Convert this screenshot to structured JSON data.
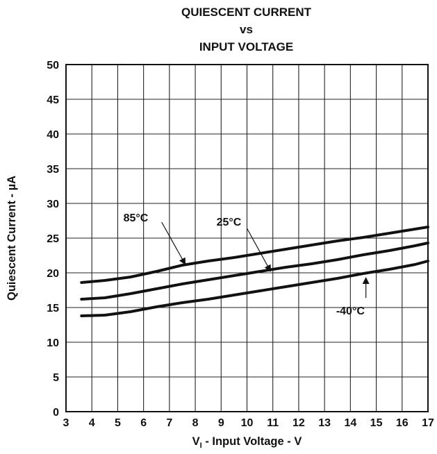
{
  "chart_data": {
    "type": "line",
    "title_lines": [
      "QUIESCENT CURRENT",
      "vs",
      "INPUT VOLTAGE"
    ],
    "xlabel_main": "V",
    "xlabel_sub": "I",
    "xlabel_rest": " - Input Voltage - V",
    "ylabel": "Quiescent Current - µA",
    "xlim": [
      3,
      17
    ],
    "ylim": [
      0,
      50
    ],
    "xticks": [
      3,
      4,
      5,
      6,
      7,
      8,
      9,
      10,
      11,
      12,
      13,
      14,
      15,
      16,
      17
    ],
    "yticks": [
      0,
      5,
      10,
      15,
      20,
      25,
      30,
      35,
      40,
      45,
      50
    ],
    "grid": true,
    "series": [
      {
        "name": "85°C",
        "x": [
          3.6,
          4.5,
          5.5,
          6.5,
          7.5,
          8.5,
          9.5,
          10.5,
          11.5,
          12.5,
          13.5,
          14.5,
          15.5,
          16.5,
          17.0
        ],
        "y": [
          18.6,
          18.9,
          19.4,
          20.2,
          21.1,
          21.7,
          22.2,
          22.8,
          23.4,
          24.0,
          24.6,
          25.1,
          25.7,
          26.3,
          26.6
        ]
      },
      {
        "name": "25°C",
        "x": [
          3.6,
          4.5,
          5.5,
          6.5,
          7.5,
          8.5,
          9.5,
          10.5,
          11.5,
          12.5,
          13.5,
          14.5,
          15.5,
          16.5,
          17.0
        ],
        "y": [
          16.2,
          16.4,
          17.0,
          17.7,
          18.4,
          19.0,
          19.6,
          20.2,
          20.8,
          21.3,
          21.9,
          22.6,
          23.2,
          23.9,
          24.3
        ]
      },
      {
        "name": "-40°C",
        "x": [
          3.6,
          4.5,
          5.5,
          6.5,
          7.5,
          8.5,
          9.5,
          10.5,
          11.5,
          12.5,
          13.5,
          14.5,
          15.5,
          16.5,
          17.0
        ],
        "y": [
          13.8,
          13.9,
          14.4,
          15.1,
          15.7,
          16.2,
          16.8,
          17.4,
          18.0,
          18.6,
          19.2,
          19.9,
          20.5,
          21.2,
          21.7
        ]
      }
    ],
    "annotations": [
      {
        "text": "85°C",
        "label_x": 5.7,
        "label_y": 28.0,
        "arrow_from": [
          6.7,
          27.3
        ],
        "arrow_to": [
          7.6,
          21.3
        ]
      },
      {
        "text": "25°C",
        "label_x": 9.3,
        "label_y": 27.4,
        "arrow_from": [
          10.0,
          26.4
        ],
        "arrow_to": [
          10.9,
          20.3
        ]
      },
      {
        "text": "-40°C",
        "label_x": 14.0,
        "label_y": 14.6,
        "arrow_from": [
          14.6,
          16.4
        ],
        "arrow_to": [
          14.6,
          19.2
        ]
      }
    ]
  }
}
